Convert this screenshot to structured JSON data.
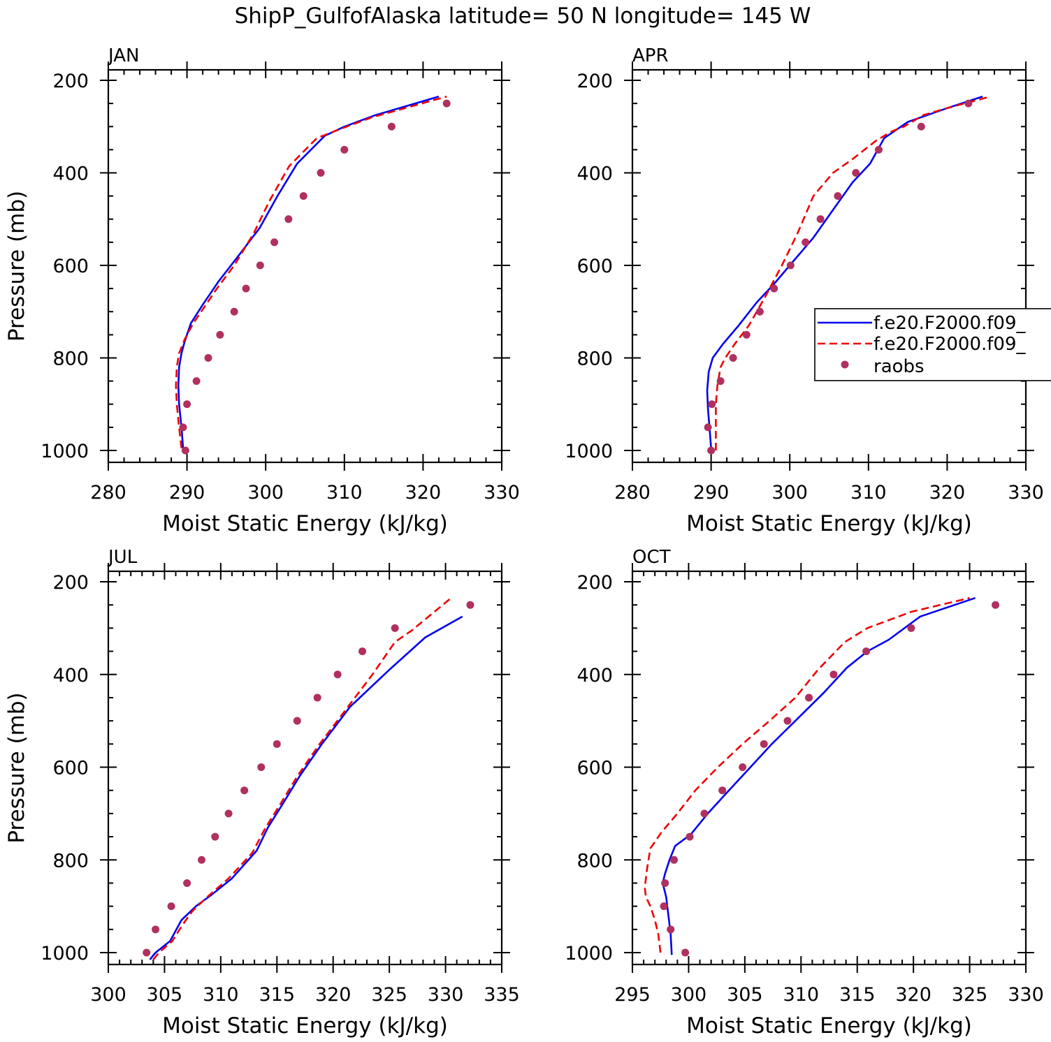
{
  "figure_title": "ShipP_GulfofAlaska  latitude= 50 N longitude= 145 W",
  "legend": {
    "entries": [
      {
        "label": "f.e20.F2000.f09_",
        "style": "solid",
        "color": "#0000ee"
      },
      {
        "label": "f.e20.F2000.f09_",
        "style": "dashed",
        "color": "#ee0000"
      },
      {
        "label": "raobs",
        "style": "dots",
        "color": "#b03060"
      }
    ]
  },
  "chart_data": [
    {
      "type": "line",
      "title": "JAN",
      "xlabel": "Moist Static Energy (kJ/kg)",
      "ylabel": "Pressure (mb)",
      "xlim": [
        280,
        330
      ],
      "ylim": [
        1000,
        200
      ],
      "xticks": [
        280,
        290,
        300,
        310,
        320,
        330
      ],
      "yticks": [
        200,
        400,
        600,
        800,
        1000
      ],
      "show_ylabel": true,
      "series": [
        {
          "name": "f.e20.F2000.f09_ (solid)",
          "x": [
            289.5,
            289.3,
            289.0,
            288.9,
            289.0,
            289.3,
            289.7,
            290.5,
            292.0,
            294.0,
            296.5,
            299.2,
            301.5,
            304.0,
            307.5,
            310.0,
            314.0,
            322.0
          ],
          "y": [
            995,
            950,
            900,
            860,
            820,
            790,
            765,
            725,
            685,
            635,
            580,
            520,
            450,
            380,
            320,
            300,
            275,
            235
          ]
        },
        {
          "name": "f.e20.F2000.f09_ (dashed)",
          "x": [
            289.3,
            289.0,
            288.7,
            288.6,
            288.7,
            289.0,
            289.7,
            290.8,
            292.2,
            293.8,
            296.0,
            298.5,
            300.5,
            303.0,
            306.5,
            309.5,
            313.5,
            323.0
          ],
          "y": [
            995,
            950,
            900,
            860,
            820,
            790,
            760,
            725,
            690,
            650,
            600,
            530,
            460,
            385,
            325,
            305,
            280,
            235
          ]
        },
        {
          "name": "raobs",
          "x": [
            289.8,
            289.5,
            290.0,
            291.2,
            292.7,
            294.2,
            296.0,
            297.5,
            299.3,
            301.1,
            302.9,
            304.8,
            307.0,
            310.0,
            316.0,
            323.0
          ],
          "y": [
            1000,
            950,
            900,
            850,
            800,
            750,
            700,
            650,
            600,
            550,
            500,
            450,
            400,
            350,
            300,
            250
          ]
        }
      ]
    },
    {
      "type": "line",
      "title": "APR",
      "xlabel": "Moist Static Energy (kJ/kg)",
      "ylabel": "",
      "xlim": [
        280,
        330
      ],
      "ylim": [
        1000,
        200
      ],
      "xticks": [
        280,
        290,
        300,
        310,
        320,
        330
      ],
      "yticks": [
        200,
        400,
        600,
        800,
        1000
      ],
      "show_ylabel": false,
      "series": [
        {
          "name": "f.e20.F2000.f09_ (solid)",
          "x": [
            290.0,
            289.8,
            289.6,
            289.5,
            289.7,
            290.2,
            291.5,
            293.5,
            295.8,
            298.0,
            300.5,
            303.0,
            305.5,
            308.0,
            310.2,
            312.0,
            315.0,
            317.5,
            320.0,
            324.5
          ],
          "y": [
            995,
            950,
            910,
            870,
            830,
            800,
            770,
            730,
            680,
            640,
            590,
            540,
            480,
            420,
            380,
            325,
            290,
            275,
            260,
            235
          ]
        },
        {
          "name": "f.e20.F2000.f09_ (dashed)",
          "x": [
            290.6,
            290.6,
            290.6,
            290.8,
            291.2,
            291.8,
            293.0,
            294.8,
            296.8,
            299.0,
            301.0,
            303.0,
            305.5,
            308.0,
            311.0,
            313.0,
            314.5,
            317.0,
            320.0,
            325.5
          ],
          "y": [
            1000,
            950,
            900,
            860,
            820,
            800,
            770,
            730,
            670,
            600,
            530,
            450,
            400,
            370,
            330,
            310,
            300,
            275,
            260,
            235
          ]
        },
        {
          "name": "raobs",
          "x": [
            290.0,
            289.6,
            290.1,
            291.2,
            292.8,
            294.5,
            296.2,
            298.0,
            300.1,
            302.0,
            303.9,
            306.1,
            308.4,
            311.3,
            316.7,
            322.7
          ],
          "y": [
            1000,
            950,
            900,
            850,
            800,
            750,
            700,
            650,
            600,
            550,
            500,
            450,
            400,
            350,
            300,
            250
          ]
        }
      ]
    },
    {
      "type": "line",
      "title": "JUL",
      "xlabel": "Moist Static Energy (kJ/kg)",
      "ylabel": "Pressure (mb)",
      "xlim": [
        300,
        335
      ],
      "ylim": [
        1000,
        200
      ],
      "xticks": [
        300,
        305,
        310,
        315,
        320,
        325,
        330,
        335
      ],
      "yticks": [
        200,
        400,
        600,
        800,
        1000
      ],
      "show_ylabel": true,
      "series": [
        {
          "name": "f.e20.F2000.f09_ (solid)",
          "x": [
            303.7,
            304.2,
            305.5,
            306.5,
            307.8,
            309.2,
            311.0,
            313.2,
            314.2,
            315.5,
            317.0,
            319.0,
            321.5,
            325.0,
            328.2,
            331.5
          ],
          "y": [
            1015,
            1000,
            975,
            930,
            900,
            875,
            840,
            780,
            730,
            680,
            620,
            550,
            470,
            390,
            320,
            275
          ]
        },
        {
          "name": "f.e20.F2000.f09_ (dashed)",
          "x": [
            304.0,
            304.5,
            305.7,
            306.6,
            307.5,
            308.8,
            310.7,
            312.8,
            314.0,
            315.3,
            316.8,
            318.8,
            321.0,
            323.5,
            325.5,
            327.0,
            330.5
          ],
          "y": [
            1015,
            1000,
            975,
            940,
            910,
            880,
            840,
            785,
            730,
            680,
            620,
            550,
            480,
            400,
            330,
            305,
            235
          ]
        },
        {
          "name": "raobs",
          "x": [
            303.4,
            304.2,
            305.6,
            307.0,
            308.3,
            309.5,
            310.7,
            312.1,
            313.6,
            315.0,
            316.8,
            318.6,
            320.4,
            322.6,
            325.5,
            332.2
          ],
          "y": [
            1000,
            950,
            900,
            850,
            800,
            750,
            700,
            650,
            600,
            550,
            500,
            450,
            400,
            350,
            300,
            250
          ]
        }
      ]
    },
    {
      "type": "line",
      "title": "OCT",
      "xlabel": "Moist Static Energy (kJ/kg)",
      "ylabel": "",
      "xlim": [
        295,
        330
      ],
      "ylim": [
        1000,
        200
      ],
      "xticks": [
        295,
        300,
        305,
        310,
        315,
        320,
        325,
        330
      ],
      "yticks": [
        200,
        400,
        600,
        800,
        1000
      ],
      "show_ylabel": false,
      "series": [
        {
          "name": "f.e20.F2000.f09_ (solid)",
          "x": [
            298.5,
            298.4,
            298.2,
            298.0,
            297.8,
            297.7,
            297.9,
            298.3,
            298.8,
            300.2,
            301.7,
            303.4,
            305.5,
            307.4,
            309.7,
            312.0,
            314.1,
            315.9,
            317.8,
            320.6,
            325.5
          ],
          "y": [
            1005,
            960,
            920,
            880,
            860,
            850,
            830,
            800,
            770,
            745,
            700,
            655,
            600,
            550,
            495,
            440,
            385,
            350,
            325,
            275,
            235
          ]
        },
        {
          "name": "f.e20.F2000.f09_ (dashed)",
          "x": [
            297.5,
            297.3,
            297.0,
            296.6,
            296.2,
            296.1,
            296.3,
            296.6,
            297.6,
            299.0,
            300.6,
            302.6,
            304.8,
            307.2,
            309.5,
            311.5,
            313.9,
            315.9,
            319.8,
            325.0
          ],
          "y": [
            1000,
            960,
            930,
            900,
            880,
            860,
            820,
            775,
            740,
            700,
            650,
            600,
            550,
            500,
            450,
            390,
            330,
            300,
            265,
            235
          ]
        },
        {
          "name": "raobs",
          "x": [
            299.7,
            298.4,
            297.8,
            297.9,
            298.7,
            300.1,
            301.4,
            303.0,
            304.8,
            306.7,
            308.8,
            310.7,
            312.9,
            315.8,
            319.8,
            327.3
          ],
          "y": [
            1000,
            950,
            900,
            850,
            800,
            750,
            700,
            650,
            600,
            550,
            500,
            450,
            400,
            350,
            300,
            250
          ]
        }
      ]
    }
  ]
}
